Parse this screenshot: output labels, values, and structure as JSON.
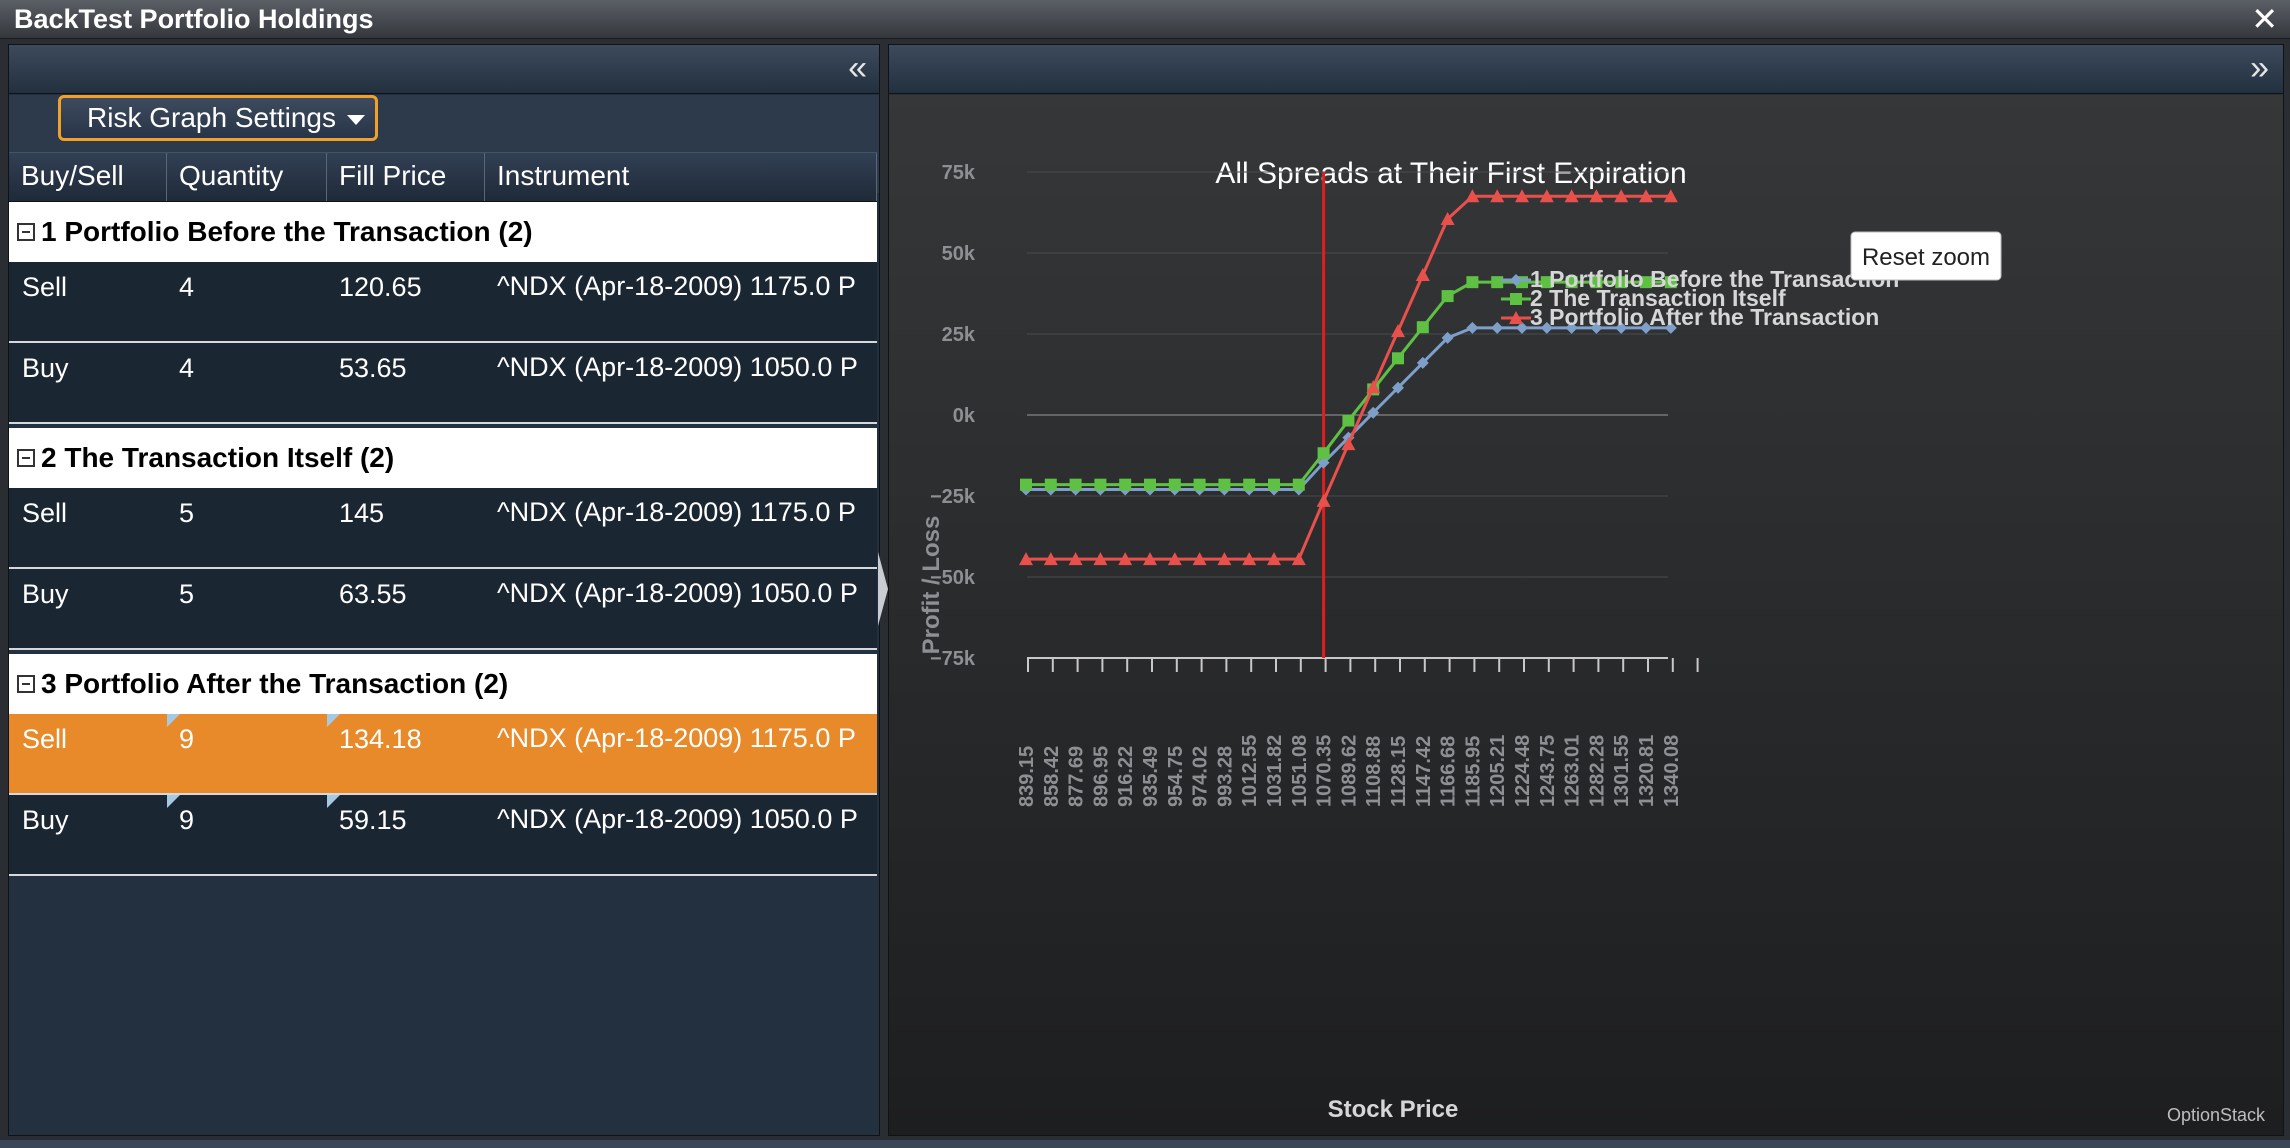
{
  "window": {
    "title": "BackTest Portfolio Holdings",
    "close_glyph": "✕"
  },
  "left_panel": {
    "collapse_glyph": "«",
    "settings_button": "Risk Graph Settings",
    "columns": [
      "Buy/Sell",
      "Quantity",
      "Fill Price",
      "Instrument"
    ],
    "groups": [
      {
        "label": "1 Portfolio Before the Transaction (2)",
        "rows": [
          {
            "side": "Sell",
            "qty": "4",
            "price": "120.65",
            "instrument": "^NDX (Apr-18-2009) 1175.0 P"
          },
          {
            "side": "Buy",
            "qty": "4",
            "price": "53.65",
            "instrument": "^NDX (Apr-18-2009) 1050.0 P"
          }
        ]
      },
      {
        "label": "2 The Transaction Itself (2)",
        "rows": [
          {
            "side": "Sell",
            "qty": "5",
            "price": "145",
            "instrument": "^NDX (Apr-18-2009) 1175.0 P"
          },
          {
            "side": "Buy",
            "qty": "5",
            "price": "63.55",
            "instrument": "^NDX (Apr-18-2009) 1050.0 P"
          }
        ]
      },
      {
        "label": "3 Portfolio After the Transaction (2)",
        "rows": [
          {
            "side": "Sell",
            "qty": "9",
            "price": "134.18",
            "instrument": "^NDX (Apr-18-2009) 1175.0 P",
            "selected": true,
            "edited": true
          },
          {
            "side": "Buy",
            "qty": "9",
            "price": "59.15",
            "instrument": "^NDX (Apr-18-2009) 1050.0 P",
            "edited": true
          }
        ]
      }
    ]
  },
  "right_panel": {
    "expand_glyph": "»",
    "reset_zoom": "Reset zoom",
    "credit": "OptionStack"
  },
  "chart_data": {
    "type": "line",
    "title": "All Spreads at Their First Expiration",
    "xlabel": "Stock Price",
    "ylabel": "Profit / Loss",
    "ylim": [
      -75000,
      75000
    ],
    "yticks": [
      "75k",
      "50k",
      "25k",
      "0k",
      "−25k",
      "−50k",
      "−75k"
    ],
    "ytick_values": [
      75000,
      50000,
      25000,
      0,
      -25000,
      -50000,
      -75000
    ],
    "categories": [
      "839.15",
      "858.42",
      "877.69",
      "896.95",
      "916.22",
      "935.49",
      "954.75",
      "974.02",
      "993.28",
      "1012.55",
      "1031.82",
      "1051.08",
      "1070.35",
      "1089.62",
      "1108.88",
      "1128.15",
      "1147.42",
      "1166.68",
      "1185.95",
      "1205.21",
      "1224.48",
      "1243.75",
      "1263.01",
      "1282.28",
      "1301.55",
      "1320.81",
      "1340.08"
    ],
    "marker_line_at": 1070.35,
    "legend_position": "right",
    "grid": true,
    "series": [
      {
        "name": "1 Portfolio Before the Transaction",
        "color": "#7d9fca",
        "marker": "diamond",
        "values": [
          -23000,
          -23000,
          -23000,
          -23000,
          -23000,
          -23000,
          -23000,
          -23000,
          -23000,
          -23000,
          -23000,
          -23000,
          -14700,
          -7000,
          700,
          8400,
          16100,
          23800,
          26900,
          26900,
          26900,
          26900,
          26900,
          26900,
          26900,
          26900,
          26900
        ]
      },
      {
        "name": "2 The Transaction Itself",
        "color": "#5fc143",
        "marker": "square",
        "values": [
          -21500,
          -21500,
          -21500,
          -21500,
          -21500,
          -21500,
          -21500,
          -21500,
          -21500,
          -21500,
          -21500,
          -21500,
          -11800,
          -1700,
          7900,
          17500,
          27100,
          36700,
          41000,
          41000,
          41000,
          41000,
          41000,
          41000,
          41000,
          41000,
          41000
        ]
      },
      {
        "name": "3 Portfolio After the Transaction",
        "color": "#e8514b",
        "marker": "triangle",
        "values": [
          -44500,
          -44500,
          -44500,
          -44500,
          -44500,
          -44500,
          -44500,
          -44500,
          -44500,
          -44500,
          -44500,
          -44500,
          -26500,
          -9000,
          8600,
          25900,
          43200,
          60500,
          67500,
          67500,
          67500,
          67500,
          67500,
          67500,
          67500,
          67500,
          67500
        ]
      }
    ]
  }
}
